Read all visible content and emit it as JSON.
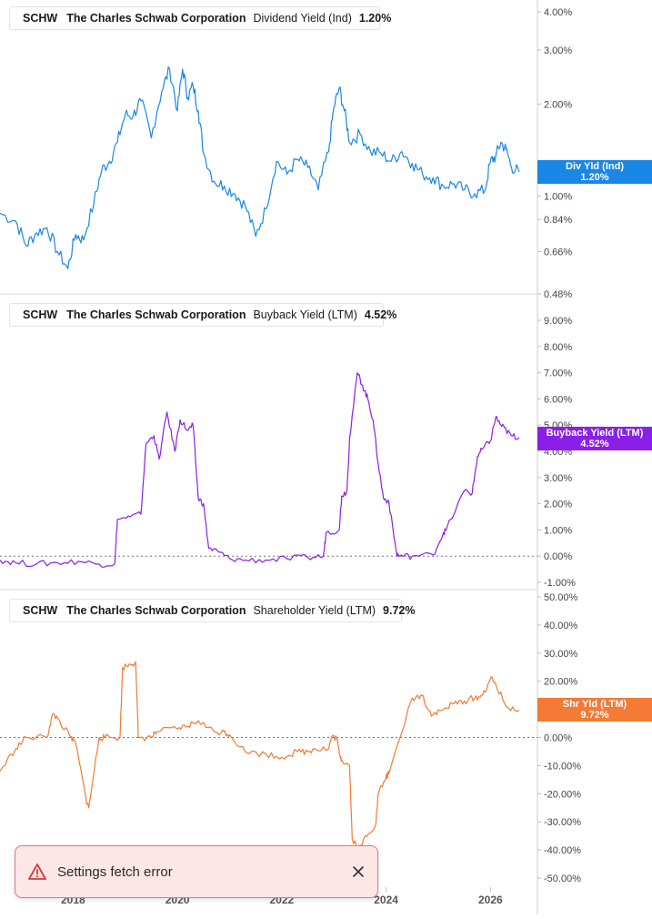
{
  "panels": [
    {
      "ticker": "SCHW",
      "company": "The Charles Schwab Corporation",
      "metric": "Dividend Yield (Ind)",
      "value": "1.20%",
      "color": "#1a87e6",
      "badge": {
        "line1": "Div Yld (Ind)",
        "line2": "1.20%",
        "color": "#1a87e6"
      }
    },
    {
      "ticker": "SCHW",
      "company": "The Charles Schwab Corporation",
      "metric": "Buyback Yield (LTM)",
      "value": "4.52%",
      "color": "#8a1fe8",
      "badge": {
        "line1": "Buyback Yield (LTM)",
        "line2": "4.52%",
        "color": "#8a1fe8"
      }
    },
    {
      "ticker": "SCHW",
      "company": "The Charles Schwab Corporation",
      "metric": "Shareholder Yield (LTM)",
      "value": "9.72%",
      "color": "#f47a36",
      "badge": {
        "line1": "Shr Yld (LTM)",
        "line2": "9.72%",
        "color": "#f47a36"
      }
    }
  ],
  "x_axis": {
    "labels": [
      "2018",
      "2020",
      "2022",
      "2024",
      "2026"
    ]
  },
  "toast": {
    "message": "Settings fetch error",
    "icon": "warning-triangle-icon",
    "close_icon": "close-icon"
  },
  "chart_data": [
    {
      "type": "line",
      "title": "SCHW The Charles Schwab Corporation Dividend Yield (Ind) 1.20%",
      "y_scale": "log",
      "ylim": [
        0.48,
        4.0
      ],
      "y_ticks": [
        "4.00%",
        "3.00%",
        "2.00%",
        "1.00%",
        "0.84%",
        "0.66%",
        "0.48%"
      ],
      "x_ticks": [
        "2018",
        "2020",
        "2022",
        "2024",
        "2026"
      ],
      "zero_line": false,
      "series": [
        {
          "name": "Dividend Yield (Ind)",
          "x": [
            2016.6,
            2016.9,
            2017.1,
            2017.3,
            2017.5,
            2017.7,
            2017.9,
            2018.05,
            2018.2,
            2018.4,
            2018.55,
            2018.7,
            2018.85,
            2019.0,
            2019.15,
            2019.3,
            2019.5,
            2019.7,
            2019.85,
            2020.0,
            2020.1,
            2020.2,
            2020.3,
            2020.4,
            2020.5,
            2020.7,
            2020.9,
            2021.1,
            2021.3,
            2021.5,
            2021.7,
            2021.9,
            2022.1,
            2022.3,
            2022.5,
            2022.7,
            2022.9,
            2023.0,
            2023.1,
            2023.2,
            2023.3,
            2023.5,
            2023.7,
            2023.9,
            2024.1,
            2024.3,
            2024.5,
            2024.7,
            2024.9,
            2025.1,
            2025.3,
            2025.5,
            2025.7,
            2025.9,
            2026.0,
            2026.1,
            2026.2,
            2026.3,
            2026.4,
            2026.55
          ],
          "values": [
            0.88,
            0.83,
            0.69,
            0.76,
            0.79,
            0.66,
            0.58,
            0.75,
            0.72,
            0.95,
            1.22,
            1.3,
            1.5,
            1.85,
            1.83,
            2.05,
            1.55,
            2.2,
            2.6,
            1.9,
            2.6,
            2.1,
            2.3,
            1.9,
            1.38,
            1.12,
            1.08,
            1.02,
            0.93,
            0.74,
            0.91,
            1.3,
            1.18,
            1.32,
            1.24,
            1.05,
            1.4,
            1.95,
            2.25,
            1.9,
            1.5,
            1.6,
            1.4,
            1.38,
            1.3,
            1.4,
            1.28,
            1.18,
            1.15,
            1.08,
            1.1,
            1.05,
            1.02,
            1.05,
            1.3,
            1.35,
            1.5,
            1.42,
            1.25,
            1.2
          ]
        }
      ]
    },
    {
      "type": "line",
      "title": "SCHW The Charles Schwab Corporation Buyback Yield (LTM) 4.52%",
      "ylim": [
        -1.0,
        9.0
      ],
      "y_ticks": [
        "9.00%",
        "8.00%",
        "7.00%",
        "6.00%",
        "5.00%",
        "4.00%",
        "3.00%",
        "2.00%",
        "1.00%",
        "0.00%",
        "-1.00%"
      ],
      "x_ticks": [
        "2018",
        "2020",
        "2022",
        "2024",
        "2026"
      ],
      "zero_line": true,
      "series": [
        {
          "name": "Buyback Yield (LTM)",
          "x": [
            2016.6,
            2016.9,
            2017.3,
            2017.7,
            2018.1,
            2018.5,
            2018.8,
            2018.85,
            2019.1,
            2019.3,
            2019.4,
            2019.55,
            2019.65,
            2019.8,
            2019.95,
            2020.05,
            2020.2,
            2020.3,
            2020.4,
            2020.5,
            2020.6,
            2020.8,
            2021.0,
            2021.3,
            2021.7,
            2022.1,
            2022.5,
            2022.8,
            2022.85,
            2023.1,
            2023.15,
            2023.25,
            2023.3,
            2023.45,
            2023.55,
            2023.65,
            2023.75,
            2023.85,
            2023.95,
            2024.05,
            2024.2,
            2024.25,
            2024.5,
            2024.9,
            2025.1,
            2025.15,
            2025.5,
            2025.65,
            2025.75,
            2025.85,
            2026.0,
            2026.1,
            2026.2,
            2026.3,
            2026.4,
            2026.55
          ],
          "values": [
            -0.15,
            -0.25,
            -0.3,
            -0.25,
            -0.2,
            -0.3,
            -0.3,
            1.4,
            1.5,
            1.6,
            4.3,
            4.6,
            3.7,
            5.5,
            4.0,
            5.2,
            4.8,
            5.0,
            2.2,
            2.0,
            0.3,
            0.15,
            -0.1,
            -0.15,
            -0.15,
            -0.1,
            -0.05,
            0.0,
            0.9,
            1.0,
            2.3,
            2.5,
            4.5,
            7.0,
            6.5,
            6.0,
            5.2,
            3.5,
            2.2,
            2.1,
            0.1,
            0.0,
            0.0,
            0.05,
            0.9,
            1.0,
            2.5,
            2.4,
            3.8,
            4.1,
            4.4,
            5.3,
            5.0,
            4.8,
            4.6,
            4.52
          ]
        }
      ]
    },
    {
      "type": "line",
      "title": "SCHW The Charles Schwab Corporation Shareholder Yield (LTM) 9.72%",
      "ylim": [
        -50.0,
        50.0
      ],
      "y_ticks": [
        "50.00%",
        "40.00%",
        "30.00%",
        "20.00%",
        "10.00%",
        "0.00%",
        "-10.00%",
        "-20.00%",
        "-30.00%",
        "-40.00%",
        "-50.00%"
      ],
      "x_ticks": [
        "2018",
        "2020",
        "2022",
        "2024",
        "2026"
      ],
      "zero_line": true,
      "series": [
        {
          "name": "Shareholder Yield (LTM)",
          "x": [
            2016.6,
            2016.9,
            2017.1,
            2017.5,
            2017.6,
            2017.7,
            2017.95,
            2018.05,
            2018.25,
            2018.3,
            2018.5,
            2018.6,
            2018.9,
            2018.95,
            2019.1,
            2019.2,
            2019.25,
            2019.5,
            2019.6,
            2020.0,
            2020.2,
            2020.4,
            2020.7,
            2020.9,
            2021.0,
            2021.3,
            2021.7,
            2022.0,
            2022.3,
            2022.5,
            2022.6,
            2022.9,
            2022.95,
            2023.05,
            2023.1,
            2023.15,
            2023.3,
            2023.35,
            2023.5,
            2023.6,
            2023.8,
            2023.85,
            2024.0,
            2024.05,
            2024.5,
            2024.7,
            2024.8,
            2024.9,
            2025.1,
            2025.3,
            2025.5,
            2025.7,
            2025.85,
            2026.0,
            2026.1,
            2026.3,
            2026.55
          ],
          "values": [
            -12,
            -4,
            0,
            0,
            8,
            7,
            0,
            -2,
            -22,
            -25,
            0,
            0,
            0,
            25,
            26,
            27,
            0,
            0,
            2,
            3,
            4,
            6,
            2,
            2,
            1,
            -5,
            -6,
            -7,
            -5,
            -5,
            -4,
            -4,
            0,
            0,
            -5,
            -8,
            -10,
            -36,
            -40,
            -35,
            -31,
            -20,
            -14,
            -13,
            14,
            15,
            10,
            8,
            10,
            12,
            13,
            14,
            15,
            21,
            19,
            11,
            9.72
          ]
        }
      ]
    }
  ]
}
